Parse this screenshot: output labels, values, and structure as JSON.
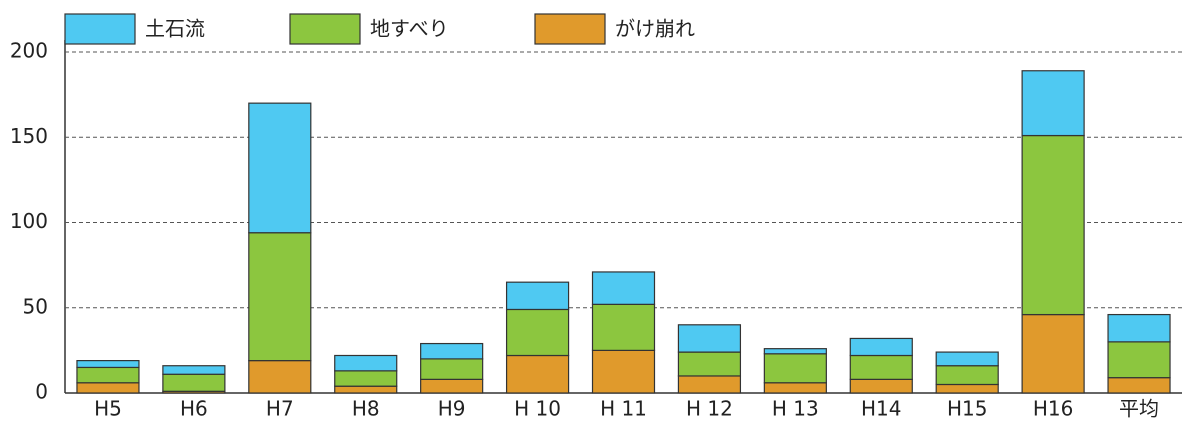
{
  "chart_data": {
    "type": "bar",
    "stacked": true,
    "categories": [
      "H5",
      "H6",
      "H7",
      "H8",
      "H9",
      "H 10",
      "H 11",
      "H 12",
      "H 13",
      "H14",
      "H15",
      "H16",
      "平均"
    ],
    "series": [
      {
        "name": "がけ崩れ",
        "color": "#e09a2c",
        "values": [
          6,
          1,
          19,
          4,
          8,
          22,
          25,
          10,
          6,
          8,
          5,
          46,
          9
        ]
      },
      {
        "name": "地すべり",
        "color": "#8cc63f",
        "values": [
          9,
          10,
          75,
          9,
          12,
          27,
          27,
          14,
          17,
          14,
          11,
          105,
          21
        ]
      },
      {
        "name": "土石流",
        "color": "#4fc9f2",
        "values": [
          4,
          5,
          76,
          9,
          9,
          16,
          19,
          16,
          3,
          10,
          8,
          38,
          16
        ]
      }
    ],
    "legend_order": [
      "土石流",
      "地すべり",
      "がけ崩れ"
    ],
    "ylim": [
      0,
      200
    ],
    "yticks": [
      0,
      50,
      100,
      150,
      200
    ],
    "grid": true
  }
}
